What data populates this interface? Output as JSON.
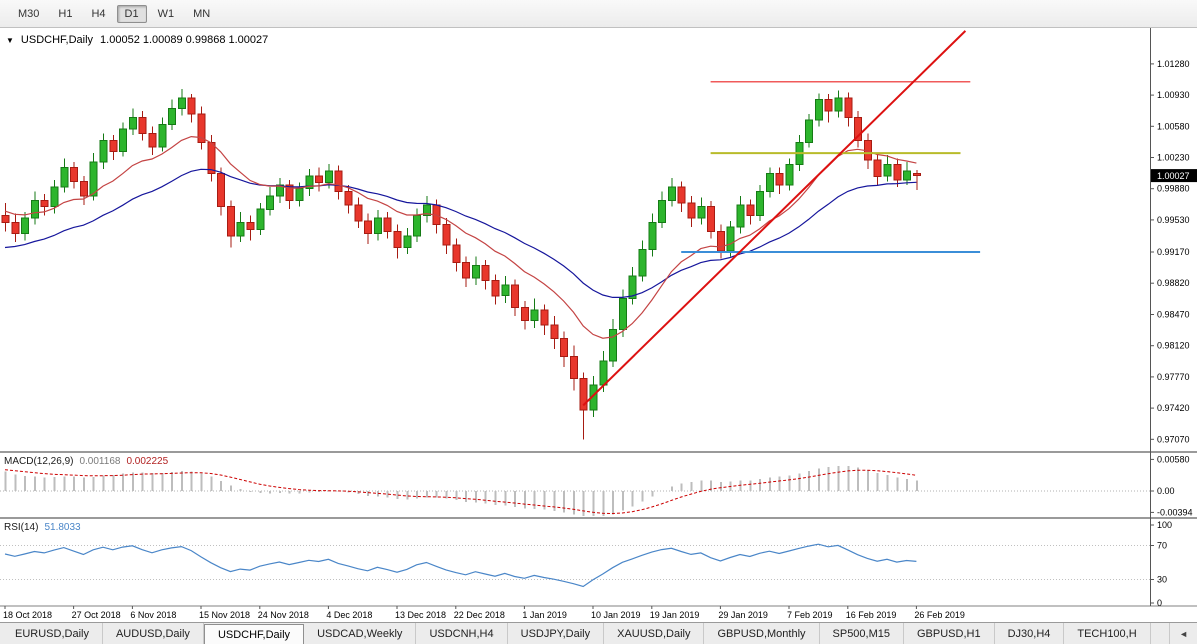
{
  "toolbar": {
    "timeframes": [
      {
        "label": "M30",
        "active": false
      },
      {
        "label": "H1",
        "active": false
      },
      {
        "label": "H4",
        "active": false
      },
      {
        "label": "D1",
        "active": true
      },
      {
        "label": "W1",
        "active": false
      },
      {
        "label": "MN",
        "active": false
      }
    ]
  },
  "chart": {
    "title": "USDCHF,Daily",
    "ohlc_text": "1.00052 1.00089 0.99868 1.00027",
    "price_badge": "1.00027",
    "expand_arrow_icon": "▼"
  },
  "indicators": {
    "macd_name": "MACD(12,26,9)",
    "macd_main": "0.001168",
    "macd_signal": "0.002225",
    "rsi_name": "RSI(14)",
    "rsi_value": "51.8033"
  },
  "tabs": {
    "active_index": 2,
    "scroll_left_icon": "◄",
    "items": [
      {
        "label": "EURUSD,Daily"
      },
      {
        "label": "AUDUSD,Daily"
      },
      {
        "label": "USDCHF,Daily"
      },
      {
        "label": "USDCAD,Weekly"
      },
      {
        "label": "USDCNH,H4"
      },
      {
        "label": "USDJPY,Daily"
      },
      {
        "label": "XAUUSD,Daily"
      },
      {
        "label": "GBPUSD,Monthly"
      },
      {
        "label": "SP500,M15"
      },
      {
        "label": "GBPUSD,H1"
      },
      {
        "label": "DJ30,H4"
      },
      {
        "label": "TECH100,H"
      }
    ]
  },
  "chart_data": {
    "type": "candlestick",
    "symbol": "USDCHF",
    "timeframe": "Daily",
    "ohlc": [
      [
        0.9958,
        0.9972,
        0.994,
        0.995
      ],
      [
        0.995,
        0.996,
        0.9928,
        0.9938
      ],
      [
        0.9938,
        0.9962,
        0.993,
        0.9955
      ],
      [
        0.9955,
        0.9985,
        0.9948,
        0.9975
      ],
      [
        0.9975,
        0.9982,
        0.9958,
        0.9968
      ],
      [
        0.9968,
        0.9998,
        0.996,
        0.999
      ],
      [
        0.999,
        1.0022,
        0.9984,
        1.0012
      ],
      [
        1.0012,
        1.0018,
        0.9988,
        0.9996
      ],
      [
        0.9996,
        1.0002,
        0.997,
        0.998
      ],
      [
        0.998,
        1.0028,
        0.9975,
        1.0018
      ],
      [
        1.0018,
        1.005,
        1.001,
        1.0042
      ],
      [
        1.0042,
        1.0048,
        1.002,
        1.003
      ],
      [
        1.003,
        1.0062,
        1.0024,
        1.0055
      ],
      [
        1.0055,
        1.0078,
        1.0048,
        1.0068
      ],
      [
        1.0068,
        1.0075,
        1.0042,
        1.005
      ],
      [
        1.005,
        1.0058,
        1.0026,
        1.0035
      ],
      [
        1.0035,
        1.0068,
        1.003,
        1.006
      ],
      [
        1.006,
        1.0088,
        1.0054,
        1.0078
      ],
      [
        1.0078,
        1.01,
        1.007,
        1.009
      ],
      [
        1.009,
        1.0094,
        1.0062,
        1.0072
      ],
      [
        1.0072,
        1.008,
        1.0032,
        1.004
      ],
      [
        1.004,
        1.0048,
        0.9996,
        1.0005
      ],
      [
        1.0005,
        1.0012,
        0.9958,
        0.9968
      ],
      [
        0.9968,
        0.9975,
        0.9922,
        0.9935
      ],
      [
        0.9935,
        0.9962,
        0.9928,
        0.995
      ],
      [
        0.995,
        0.9958,
        0.993,
        0.9942
      ],
      [
        0.9942,
        0.9972,
        0.9936,
        0.9965
      ],
      [
        0.9965,
        0.999,
        0.9958,
        0.998
      ],
      [
        0.998,
        1.0,
        0.9972,
        0.9992
      ],
      [
        0.9992,
        0.9998,
        0.9965,
        0.9975
      ],
      [
        0.9975,
        0.9995,
        0.9968,
        0.9988
      ],
      [
        0.9988,
        1.001,
        0.998,
        1.0002
      ],
      [
        1.0002,
        1.0012,
        0.9985,
        0.9995
      ],
      [
        0.9995,
        1.0016,
        0.9988,
        1.0008
      ],
      [
        1.0008,
        1.0014,
        0.9976,
        0.9985
      ],
      [
        0.9985,
        0.9992,
        0.996,
        0.997
      ],
      [
        0.997,
        0.9978,
        0.9944,
        0.9952
      ],
      [
        0.9952,
        0.996,
        0.9926,
        0.9938
      ],
      [
        0.9938,
        0.9964,
        0.993,
        0.9955
      ],
      [
        0.9955,
        0.9962,
        0.9932,
        0.994
      ],
      [
        0.994,
        0.9948,
        0.991,
        0.9922
      ],
      [
        0.9922,
        0.9944,
        0.9915,
        0.9935
      ],
      [
        0.9935,
        0.9966,
        0.9928,
        0.9958
      ],
      [
        0.9958,
        0.998,
        0.995,
        0.997
      ],
      [
        0.997,
        0.9976,
        0.9938,
        0.9948
      ],
      [
        0.9948,
        0.9955,
        0.9915,
        0.9925
      ],
      [
        0.9925,
        0.9932,
        0.9895,
        0.9905
      ],
      [
        0.9905,
        0.9912,
        0.9878,
        0.9888
      ],
      [
        0.9888,
        0.9912,
        0.988,
        0.9902
      ],
      [
        0.9902,
        0.9908,
        0.9875,
        0.9885
      ],
      [
        0.9885,
        0.9892,
        0.9858,
        0.9868
      ],
      [
        0.9868,
        0.989,
        0.986,
        0.988
      ],
      [
        0.988,
        0.9886,
        0.9845,
        0.9855
      ],
      [
        0.9855,
        0.9862,
        0.983,
        0.984
      ],
      [
        0.984,
        0.9865,
        0.9832,
        0.9852
      ],
      [
        0.9852,
        0.9858,
        0.9824,
        0.9835
      ],
      [
        0.9835,
        0.9845,
        0.9808,
        0.982
      ],
      [
        0.982,
        0.9828,
        0.9788,
        0.98
      ],
      [
        0.98,
        0.9812,
        0.9762,
        0.9775
      ],
      [
        0.9775,
        0.9782,
        0.9707,
        0.974
      ],
      [
        0.974,
        0.9778,
        0.9732,
        0.9768
      ],
      [
        0.9768,
        0.9806,
        0.976,
        0.9795
      ],
      [
        0.9795,
        0.9842,
        0.9788,
        0.983
      ],
      [
        0.983,
        0.9875,
        0.9822,
        0.9865
      ],
      [
        0.9865,
        0.99,
        0.9858,
        0.989
      ],
      [
        0.989,
        0.993,
        0.9884,
        0.992
      ],
      [
        0.992,
        0.996,
        0.9912,
        0.995
      ],
      [
        0.995,
        0.9985,
        0.9944,
        0.9975
      ],
      [
        0.9975,
        1.0,
        0.9968,
        0.999
      ],
      [
        0.999,
        0.9996,
        0.9962,
        0.9972
      ],
      [
        0.9972,
        0.998,
        0.9945,
        0.9955
      ],
      [
        0.9955,
        0.9978,
        0.9948,
        0.9968
      ],
      [
        0.9968,
        0.9974,
        0.9932,
        0.994
      ],
      [
        0.994,
        0.9948,
        0.991,
        0.9918
      ],
      [
        0.9918,
        0.9952,
        0.9912,
        0.9945
      ],
      [
        0.9945,
        0.998,
        0.9938,
        0.997
      ],
      [
        0.997,
        0.9976,
        0.9948,
        0.9958
      ],
      [
        0.9958,
        0.9992,
        0.9952,
        0.9985
      ],
      [
        0.9985,
        1.0012,
        0.9978,
        1.0005
      ],
      [
        1.0005,
        1.0012,
        0.9982,
        0.9992
      ],
      [
        0.9992,
        1.0022,
        0.9986,
        1.0015
      ],
      [
        1.0015,
        1.0048,
        1.0008,
        1.004
      ],
      [
        1.004,
        1.0072,
        1.0034,
        1.0065
      ],
      [
        1.0065,
        1.0095,
        1.0058,
        1.0088
      ],
      [
        1.0088,
        1.0094,
        1.0062,
        1.0075
      ],
      [
        1.0075,
        1.0098,
        1.0068,
        1.009
      ],
      [
        1.009,
        1.0096,
        1.0058,
        1.0068
      ],
      [
        1.0068,
        1.0075,
        1.0034,
        1.0042
      ],
      [
        1.0042,
        1.005,
        1.001,
        1.002
      ],
      [
        1.002,
        1.0028,
        0.9992,
        1.0002
      ],
      [
        1.0002,
        1.0026,
        0.9996,
        1.0015
      ],
      [
        1.0015,
        1.0022,
        0.999,
        0.9998
      ],
      [
        0.9998,
        1.0018,
        0.9992,
        1.0008
      ],
      [
        1.00052,
        1.00089,
        0.99868,
        1.00027
      ]
    ],
    "date_labels": [
      {
        "bar": 0,
        "label": "18 Oct 2018"
      },
      {
        "bar": 7,
        "label": "27 Oct 2018"
      },
      {
        "bar": 13,
        "label": "6 Nov 2018"
      },
      {
        "bar": 20,
        "label": "15 Nov 2018"
      },
      {
        "bar": 26,
        "label": "24 Nov 2018"
      },
      {
        "bar": 33,
        "label": "4 Dec 2018"
      },
      {
        "bar": 40,
        "label": "13 Dec 2018"
      },
      {
        "bar": 46,
        "label": "22 Dec 2018"
      },
      {
        "bar": 53,
        "label": "1 Jan 2019"
      },
      {
        "bar": 60,
        "label": "10 Jan 2019"
      },
      {
        "bar": 66,
        "label": "19 Jan 2019"
      },
      {
        "bar": 73,
        "label": "29 Jan 2019"
      },
      {
        "bar": 80,
        "label": "7 Feb 2019"
      },
      {
        "bar": 86,
        "label": "16 Feb 2019"
      },
      {
        "bar": 93,
        "label": "26 Feb 2019"
      }
    ],
    "main_axis": {
      "min": 0.9695,
      "max": 1.0166,
      "ticks": [
        {
          "v": 1.0128,
          "label": "1.01280"
        },
        {
          "v": 1.0093,
          "label": "1.00930"
        },
        {
          "v": 1.0058,
          "label": "1.00580"
        },
        {
          "v": 1.0023,
          "label": "1.00230"
        },
        {
          "v": 0.9988,
          "label": "0.99880"
        },
        {
          "v": 0.9953,
          "label": "0.99530"
        },
        {
          "v": 0.9917,
          "label": "0.99170"
        },
        {
          "v": 0.9882,
          "label": "0.98820"
        },
        {
          "v": 0.9847,
          "label": "0.98470"
        },
        {
          "v": 0.9812,
          "label": "0.98120"
        },
        {
          "v": 0.9777,
          "label": "0.97770"
        },
        {
          "v": 0.9742,
          "label": "0.97420"
        },
        {
          "v": 0.9707,
          "label": "0.97070"
        }
      ]
    },
    "macd_axis": {
      "min": -0.0046,
      "max": 0.0068,
      "ticks": [
        {
          "v": 0.0058,
          "label": "0.00580"
        },
        {
          "v": 0,
          "label": "0.00"
        },
        {
          "v": -0.00394,
          "label": "-0.00394"
        }
      ]
    },
    "rsi_axis": {
      "ticks": [
        {
          "v": 100,
          "label": "100"
        },
        {
          "v": 70,
          "label": "70"
        },
        {
          "v": 30,
          "label": "30"
        },
        {
          "v": 0,
          "label": "0"
        }
      ]
    },
    "price_badge_value": 1.00027,
    "overlays": {
      "ma_fast": {
        "period": 13,
        "seed": 0.9965,
        "color": "#c44444"
      },
      "ma_slow": {
        "period": 28,
        "seed": 0.992,
        "color": "#16169c"
      },
      "trend_line": {
        "bar1": 59,
        "price1": 0.9745,
        "bar2": 98,
        "price2": 1.0165,
        "color": "#dd1111",
        "width": 2
      },
      "h_lines": [
        {
          "price": 1.0108,
          "bar1": 72,
          "bar2": 98.5,
          "color": "#f05a5a",
          "width": 1.5
        },
        {
          "price": 1.0028,
          "bar1": 72,
          "bar2": 97.5,
          "color": "#b8bb2a",
          "width": 2
        },
        {
          "price": 0.9917,
          "bar1": 69,
          "bar2": 99.5,
          "color": "#3b8ed8",
          "width": 2
        }
      ]
    },
    "macd_params": {
      "fast": 12,
      "slow": 26,
      "signal": 9,
      "seed_fast": 0.997,
      "seed_slow": 0.993,
      "seed_signal": 0.004,
      "hist_color": "#bdbdbd",
      "signal_color": "#cc0000"
    },
    "rsi_params": {
      "period": 14,
      "color": "#4a86c8",
      "levels": [
        70,
        30
      ]
    },
    "colors": {
      "up": "#2db52d",
      "up_border": "#157a15",
      "down": "#e8372c",
      "down_border": "#a61b12",
      "background": "#ffffff"
    }
  }
}
